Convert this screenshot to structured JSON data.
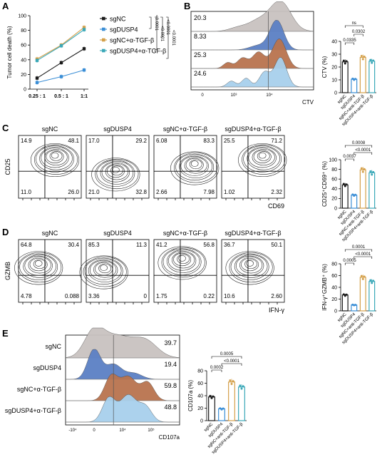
{
  "colors": {
    "sgNC": "#1a1a1a",
    "sgDUSP4": "#3a8ed6",
    "sgNC_TGF": "#d4a04a",
    "sgDUSP4_TGF": "#3aa8b8",
    "histGray": "#c8c2c0",
    "histBlue": "#5b7fc4",
    "histBrown": "#b8734e",
    "histLight": "#a8d0ec"
  },
  "panels": {
    "A": {
      "letter": "A"
    },
    "B": {
      "letter": "B"
    },
    "C": {
      "letter": "C"
    },
    "D": {
      "letter": "D"
    },
    "E": {
      "letter": "E"
    }
  },
  "chart_data": [
    {
      "id": "A",
      "type": "line",
      "ylabel": "Tumor cell death (%)",
      "ylim": [
        0,
        100
      ],
      "yticks": [
        "0",
        "20",
        "40",
        "60",
        "80",
        "100"
      ],
      "categories": [
        "0.25 : 1",
        "0.5 : 1",
        "1:1"
      ],
      "series": [
        {
          "name": "sgNC",
          "values": [
            15,
            36,
            55
          ]
        },
        {
          "name": "sgDUSP4",
          "values": [
            9,
            17,
            26
          ]
        },
        {
          "name": "sgNC+α-TGF-β",
          "values": [
            41,
            60,
            84
          ]
        },
        {
          "name": "sgDUSP4+α-TGF-β",
          "values": [
            39,
            59,
            81
          ]
        }
      ],
      "pvalues": [
        "<0.0001",
        "<0.0001",
        "<0.0001",
        "<0.0001"
      ]
    },
    {
      "id": "B",
      "type": "bar",
      "histogram_values": [
        "20.3",
        "8.33",
        "25.3",
        "24.6"
      ],
      "xlabel": "CTV",
      "xticks": [
        "0",
        "10³",
        "10⁴"
      ],
      "ylabel": "CTV (%)",
      "ylim": [
        0,
        40
      ],
      "yticks": [
        "0",
        "10",
        "20",
        "30",
        "40"
      ],
      "categories": [
        "sgNC",
        "sgDUSP4",
        "sgNC+anti-TGF-β",
        "sgDUSP4+anti-TGF-β"
      ],
      "values": [
        24,
        10.5,
        27.5,
        24.5
      ],
      "significance": [
        {
          "label": "ns"
        },
        {
          "label": "0.0302"
        },
        {
          "label": "0.0335"
        }
      ]
    },
    {
      "id": "C",
      "type": "bar",
      "plots": [
        {
          "title": "sgNC",
          "q": [
            "14.9",
            "48.1",
            "11.0",
            "26.0"
          ]
        },
        {
          "title": "sgDUSP4",
          "q": [
            "17.0",
            "29.2",
            "21.0",
            "32.8"
          ]
        },
        {
          "title": "sgNC+α-TGF-β",
          "q": [
            "6.08",
            "83.3",
            "2.66",
            "7.98"
          ]
        },
        {
          "title": "sgDUSP4+α-TGF-β",
          "q": [
            "25.5",
            "71.2",
            "1.02",
            "2.32"
          ]
        }
      ],
      "xlabel": "CD69",
      "ylabel": "CD25",
      "bar_ylabel": "CD25⁺CD69⁺ (%)",
      "ylim": [
        0,
        100
      ],
      "yticks": [
        "0",
        "20",
        "40",
        "60",
        "80",
        "100"
      ],
      "categories": [
        "sgNC",
        "sgDUSP4",
        "sgNC+anti-TGF-β",
        "sgDUSP4+anti-TGF-β"
      ],
      "values": [
        48,
        27,
        79,
        73
      ],
      "significance": [
        {
          "label": "0.0008"
        },
        {
          "label": "<0.0001"
        },
        {
          "label": "0.0037"
        }
      ]
    },
    {
      "id": "D",
      "type": "bar",
      "plots": [
        {
          "title": "sgNC",
          "q": [
            "64.8",
            "30.4",
            "4.78",
            "0.088"
          ]
        },
        {
          "title": "sgDUSP4",
          "q": [
            "85.3",
            "11.3",
            "3.36",
            "0"
          ]
        },
        {
          "title": "sgNC+α-TGF-β",
          "q": [
            "41.2",
            "56.8",
            "1.75",
            "0.22"
          ]
        },
        {
          "title": "sgDUSP4+α-TGF-β",
          "q": [
            "36.7",
            "50.1",
            "10.6",
            "2.60"
          ]
        }
      ],
      "xlabel": "IFN-γ",
      "ylabel": "GZMB",
      "bar_ylabel": "IFN-γ⁺GZMB⁺ (%)",
      "ylim": [
        0,
        80
      ],
      "yticks": [
        "0",
        "20",
        "40",
        "60",
        "80"
      ],
      "categories": [
        "sgNC",
        "sgDUSP4",
        "sgNC+anti-TGF-β",
        "sgDUSP4+anti-TGF-β"
      ],
      "values": [
        27,
        10,
        57,
        50
      ],
      "significance": [
        {
          "label": "0.0001"
        },
        {
          "label": "<0.0001"
        },
        {
          "label": "0.0005"
        }
      ]
    },
    {
      "id": "E",
      "type": "bar",
      "hist_labels": [
        "sgNC",
        "sgDUSP4",
        "sgNC+α-TGF-β",
        "sgDUSP4+α-TGF-β"
      ],
      "histogram_values": [
        "39.7",
        "19.4",
        "59.8",
        "48.8"
      ],
      "xlabel": "CD107a",
      "xticks": [
        "-10⁴",
        "0",
        "10⁴",
        "10⁵"
      ],
      "ylabel": "CD107a (%)",
      "ylim": [
        0,
        80
      ],
      "yticks": [
        "0",
        "20",
        "40",
        "60",
        "80"
      ],
      "categories": [
        "sgNC",
        "sgDUSP4",
        "sgNC+anti-TGF-β",
        "sgDUSP4+anti-TGF-β"
      ],
      "values": [
        38,
        19,
        62,
        54
      ],
      "significance": [
        {
          "label": "0.0005"
        },
        {
          "label": "<0.0001"
        },
        {
          "label": "0.0002"
        }
      ]
    }
  ]
}
